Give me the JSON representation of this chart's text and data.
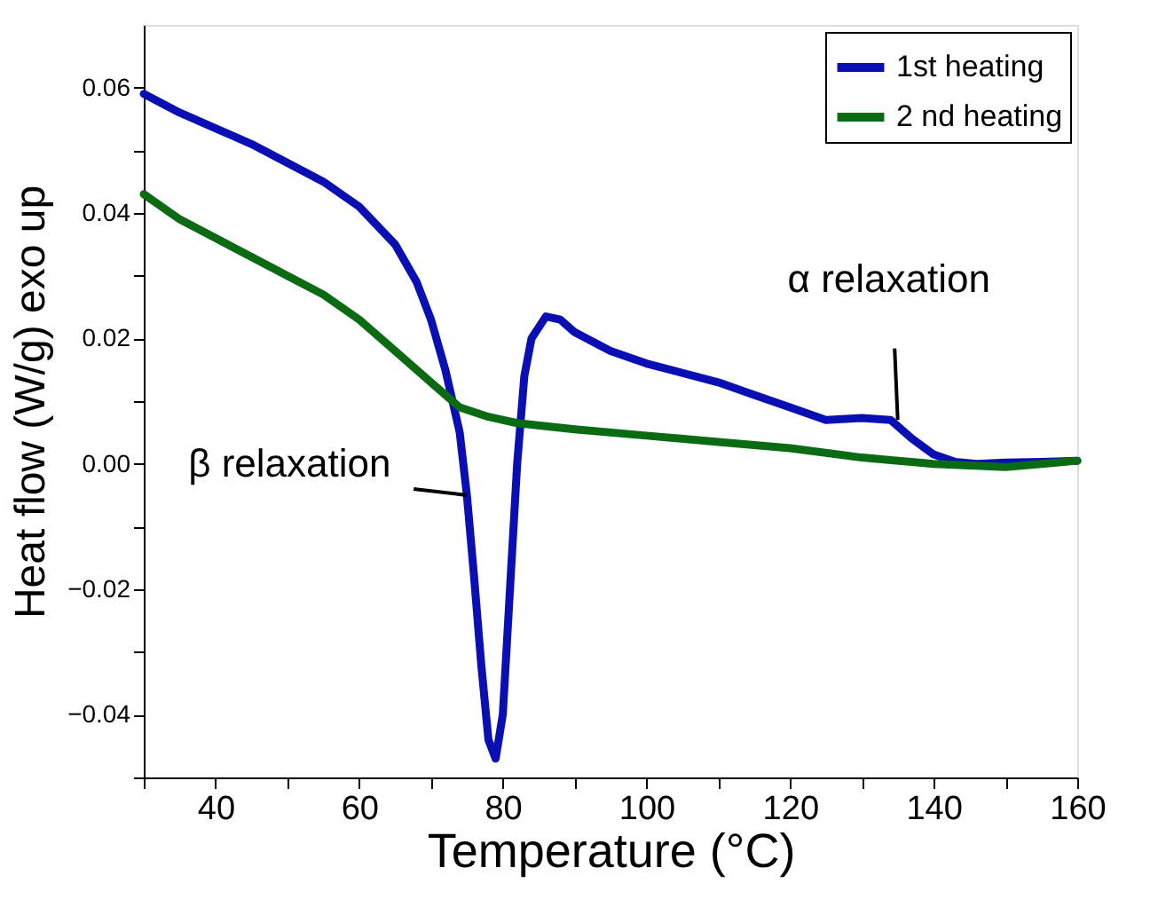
{
  "chart_data": {
    "type": "line",
    "xlabel": "Temperature (°C)",
    "ylabel": "Heat flow (W/g) exo up",
    "xlim": [
      30,
      160
    ],
    "ylim": [
      -0.05,
      0.07
    ],
    "xticks": [
      {
        "value": 30,
        "label": null
      },
      40,
      {
        "value": 50,
        "label": null
      },
      60,
      {
        "value": 70,
        "label": null
      },
      80,
      {
        "value": 90,
        "label": null
      },
      100,
      {
        "value": 110,
        "label": null
      },
      120,
      {
        "value": 130,
        "label": null
      },
      140,
      {
        "value": 150,
        "label": null
      },
      160
    ],
    "yticks": [
      {
        "value": -0.05,
        "label": null
      },
      {
        "value": -0.04,
        "label": "−0.04"
      },
      {
        "value": -0.03,
        "label": null
      },
      {
        "value": -0.02,
        "label": "−0.02"
      },
      {
        "value": -0.01,
        "label": null
      },
      {
        "value": 0,
        "label": "0.00"
      },
      {
        "value": 0.01,
        "label": null
      },
      {
        "value": 0.02,
        "label": "0.02"
      },
      {
        "value": 0.03,
        "label": null
      },
      {
        "value": 0.04,
        "label": "0.04"
      },
      {
        "value": 0.05,
        "label": null
      },
      {
        "value": 0.06,
        "label": "0.06"
      }
    ],
    "grid": false,
    "legend": "top right",
    "line_style": "solid",
    "marker": "none",
    "annotations": [
      {
        "text": "α relaxation",
        "x": 135,
        "y": 0.007
      },
      {
        "text": "β relaxation",
        "x": 75,
        "y": -0.005
      }
    ],
    "series": [
      {
        "name": "1st heating",
        "color": "#0a0fb4",
        "x": [
          30,
          35,
          40,
          45,
          50,
          55,
          60,
          65,
          68,
          70,
          72,
          74,
          75,
          76,
          77,
          78,
          79,
          80,
          81,
          82,
          83,
          84,
          86,
          88,
          90,
          95,
          100,
          110,
          115,
          120,
          125,
          130,
          134,
          137,
          140,
          143,
          146,
          150,
          155,
          160
        ],
        "values": [
          0.059,
          0.056,
          0.0535,
          0.051,
          0.048,
          0.045,
          0.041,
          0.035,
          0.029,
          0.023,
          0.015,
          0.005,
          -0.005,
          -0.018,
          -0.032,
          -0.044,
          -0.047,
          -0.04,
          -0.02,
          0.0,
          0.014,
          0.02,
          0.0235,
          0.023,
          0.021,
          0.018,
          0.016,
          0.013,
          0.011,
          0.009,
          0.007,
          0.0073,
          0.007,
          0.004,
          0.0015,
          0.0003,
          0.0,
          0.0002,
          0.0003,
          0.0005
        ]
      },
      {
        "name": "2 nd heating",
        "color": "#0b6b12",
        "x": [
          30,
          35,
          40,
          45,
          50,
          55,
          60,
          65,
          70,
          74,
          78,
          82,
          90,
          100,
          110,
          120,
          130,
          140,
          150,
          155,
          160
        ],
        "values": [
          0.043,
          0.039,
          0.036,
          0.033,
          0.03,
          0.027,
          0.023,
          0.018,
          0.013,
          0.009,
          0.0075,
          0.0065,
          0.0055,
          0.0045,
          0.0035,
          0.0025,
          0.001,
          0.0,
          -0.0005,
          0.0,
          0.0005
        ]
      }
    ]
  }
}
